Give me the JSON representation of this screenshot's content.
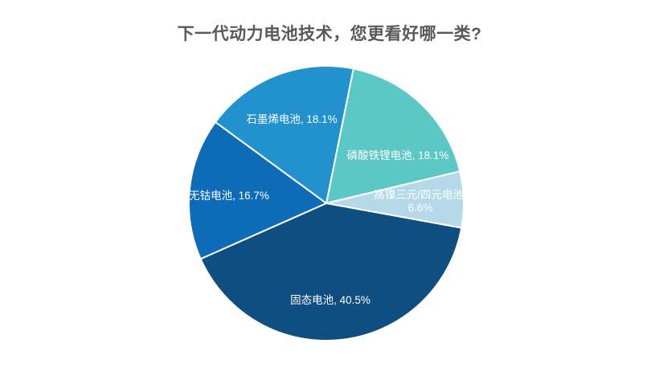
{
  "page": {
    "background_color": "#ffffff"
  },
  "title": {
    "text": "下一代动力电池技术，您更看好哪一类?",
    "color": "#595959"
  },
  "chart_data": {
    "type": "pie",
    "title": "下一代动力电池技术，您更看好哪一类?",
    "unit": "%",
    "rotation_deg": 11.4,
    "clockwise": true,
    "legend": "none",
    "label_style": "inside, name + percent",
    "label_color": "#ffffff",
    "border_color": "#ffffff",
    "slices": [
      {
        "name": "磷酸铁锂电池",
        "value": 18.1,
        "label": "磷酸铁锂电池, 18.1%",
        "color": "#5cc8c6"
      },
      {
        "name": "高镍三元/四元电池",
        "value": 6.6,
        "label": "高镍三元/四元电池, 6.6%",
        "color": "#b5d9e8"
      },
      {
        "name": "固态电池",
        "value": 40.5,
        "label": "固态电池, 40.5%",
        "color": "#0f4e80"
      },
      {
        "name": "无钴电池",
        "value": 16.7,
        "label": "无钴电池, 16.7%",
        "color": "#0e6bb8"
      },
      {
        "name": "石墨烯电池",
        "value": 18.1,
        "label": "石墨烯电池, 18.1%",
        "color": "#2292cf"
      }
    ]
  }
}
